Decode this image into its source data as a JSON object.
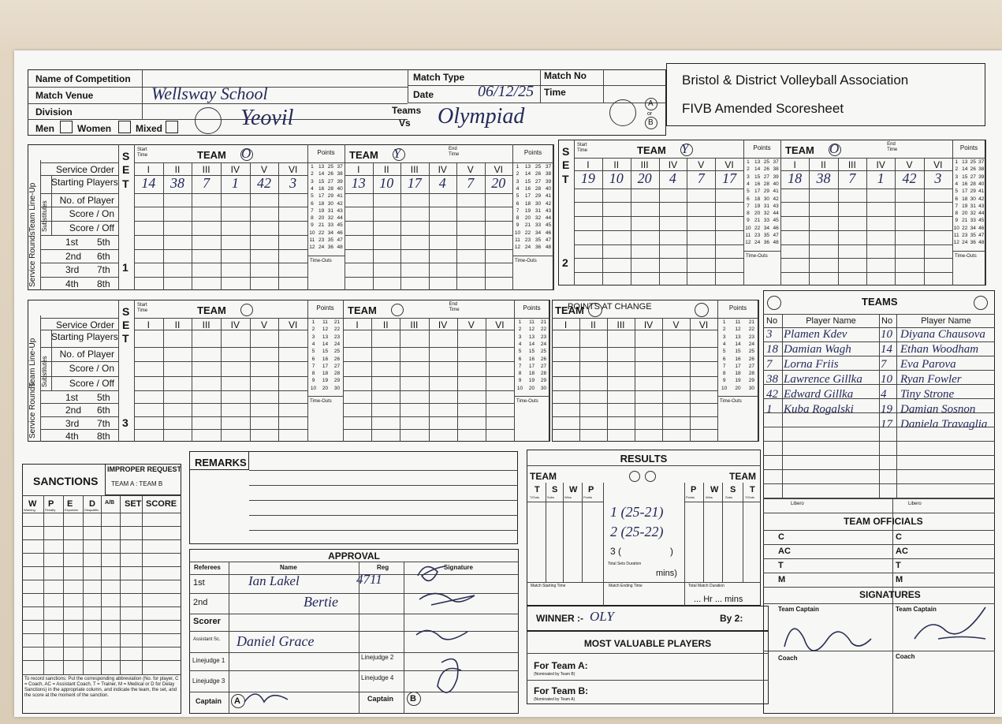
{
  "header": {
    "competition_label": "Name of Competition",
    "venue_label": "Match Venue",
    "venue": "Wellsway School",
    "division_label": "Division",
    "men": "Men",
    "women": "Women",
    "mixed": "Mixed",
    "match_type_label": "Match Type",
    "date_label": "Date",
    "date": "06/12/25",
    "match_no_label": "Match No",
    "time_label": "Time",
    "teams_label": "Teams",
    "vs_label": "Vs",
    "team_a": "Yeovil",
    "team_b": "Olympiad",
    "a_mark": "A",
    "or": "or",
    "b_mark": "B",
    "association": "Bristol & District Volleyball Association",
    "sheet_title": "FIVB Amended Scoresheet"
  },
  "lineup_labels": {
    "service_order": "Service Order",
    "starting_players": "Starting Players",
    "no_of_player": "No. of Player",
    "score_on": "Score / On",
    "score_off": "Score / Off",
    "team_lineup": "Team Line-Up",
    "substitutes": "Substitutes",
    "service_rounds": "Service Rounds",
    "rounds": [
      "1st",
      "5th",
      "2nd",
      "6th",
      "3rd",
      "7th",
      "4th",
      "8th"
    ],
    "ste": [
      "S",
      "E",
      "T"
    ]
  },
  "set_labels": {
    "start_time": "Start Time",
    "end_time": "End Time",
    "team": "TEAM",
    "points": "Points",
    "time_outs": "Time-Outs",
    "positions": [
      "I",
      "II",
      "III",
      "IV",
      "V",
      "VI"
    ],
    "points_at_change": "POINTS AT CHANGE"
  },
  "points_48": [
    1,
    2,
    3,
    4,
    5,
    6,
    7,
    8,
    9,
    10,
    11,
    12,
    13,
    14,
    15,
    16,
    17,
    18,
    19,
    20,
    21,
    22,
    23,
    24,
    25,
    26,
    27,
    28,
    29,
    30,
    31,
    32,
    33,
    34,
    35,
    36,
    37,
    38,
    39,
    40,
    41,
    42,
    43,
    44,
    45,
    46,
    47,
    48
  ],
  "points_30": [
    1,
    2,
    3,
    4,
    5,
    6,
    7,
    8,
    9,
    10,
    11,
    12,
    13,
    14,
    15,
    16,
    17,
    18,
    19,
    20,
    21,
    22,
    23,
    24,
    25,
    26,
    27,
    28,
    29,
    30
  ],
  "sets": [
    {
      "number": "1",
      "left": {
        "team_mark": "O",
        "starting": [
          "14",
          "38",
          "7",
          "1",
          "42",
          "3"
        ]
      },
      "right": {
        "team_mark": "Y",
        "starting": [
          "13",
          "10",
          "17",
          "4",
          "7",
          "20"
        ]
      }
    },
    {
      "number": "2",
      "left": {
        "team_mark": "Y",
        "starting": [
          "19",
          "10",
          "20",
          "4",
          "7",
          "17"
        ]
      },
      "right": {
        "team_mark": "O",
        "starting": [
          "18",
          "38",
          "7",
          "1",
          "42",
          "3"
        ]
      }
    },
    {
      "number": "3"
    }
  ],
  "teams": {
    "title": "TEAMS",
    "no_label": "No",
    "name_label": "Player Name",
    "libero_label": "Libero",
    "left_players": [
      {
        "no": "3",
        "name": "Plamen Kdev"
      },
      {
        "no": "18",
        "name": "Damian Wagh"
      },
      {
        "no": "7",
        "name": "Lorna Friis"
      },
      {
        "no": "38",
        "name": "Lawrence Gillka"
      },
      {
        "no": "42",
        "name": "Edward Gillka"
      },
      {
        "no": "1",
        "name": "Kuba Rogalski"
      }
    ],
    "right_players": [
      {
        "no": "10",
        "name": "Diyana Chausova"
      },
      {
        "no": "14",
        "name": "Ethan Woodham"
      },
      {
        "no": "7",
        "name": "Eva Parova"
      },
      {
        "no": "10",
        "name": "Ryan Fowler"
      },
      {
        "no": "4",
        "name": "Tiny Strone"
      },
      {
        "no": "19",
        "name": "Damian Sosnon"
      },
      {
        "no": "17",
        "name": "Daniela Travaglia"
      }
    ],
    "officials_title": "TEAM OFFICIALS",
    "official_roles": [
      "C",
      "AC",
      "T",
      "M"
    ],
    "signatures_title": "SIGNATURES",
    "captain_label": "Team Captain",
    "coach_label": "Coach"
  },
  "sanctions": {
    "title": "SANCTIONS",
    "improper_request": "IMPROPER REQUEST",
    "improper_teams": "TEAM A : TEAM B",
    "columns": [
      "W",
      "P",
      "E",
      "D",
      "A/B",
      "SET",
      "SCORE"
    ],
    "column_notes": [
      "Warning",
      "Penalty",
      "Expulsion",
      "Disqualific."
    ],
    "note": "To record sanctions: Put the corresponding abbreviation (No. for player, C = Coach, AC = Assistant Coach, T = Trainer, M = Medical or D for Delay Sanctions) in the appropriate column, and indicate the team, the set, and the score at the moment of the sanction."
  },
  "remarks": {
    "title": "REMARKS"
  },
  "approval": {
    "title": "APPROVAL",
    "columns": [
      "Referees",
      "Name",
      "Reg",
      "Signature"
    ],
    "rows": [
      {
        "role": "1st",
        "name": "Ian Lakel",
        "reg": "4711"
      },
      {
        "role": "2nd",
        "name": "Bertie"
      },
      {
        "role": "Scorer"
      },
      {
        "role": "Assistant Sc.",
        "name": "Daniel Grace"
      }
    ],
    "linejudges": [
      "Linejudge 1",
      "Linejudge 2",
      "Linejudge 3",
      "Linejudge 4"
    ],
    "captain": "Captain",
    "captain_a": "A",
    "captain_b": "B"
  },
  "results": {
    "title": "RESULTS",
    "team_label": "TEAM",
    "left_cols": [
      "T",
      "S",
      "W",
      "P"
    ],
    "right_cols": [
      "P",
      "W",
      "S",
      "T"
    ],
    "col_notes": [
      "T/Outs",
      "Subs",
      "Wins",
      "Points"
    ],
    "sets": [
      "1 (25-21)",
      "2 (25-22)"
    ],
    "set3_open": "3 (",
    "set3_close": ")",
    "duration_label": "Total Sets Duration",
    "mins": "mins)",
    "start_label": "Match Starting Time",
    "end_label": "Match Ending Time",
    "total_label": "Total Match Duration",
    "hr_mins": "... Hr ... mins",
    "winner_label": "WINNER :-",
    "winner": "OLY",
    "by": "By 2:"
  },
  "mvp": {
    "title": "MOST VALUABLE PLAYERS",
    "team_a": "For Team A:",
    "nominated_b": "(Nominated by Team B)",
    "team_b": "For Team B:",
    "nominated_a": "(Nominated by Team A)"
  }
}
